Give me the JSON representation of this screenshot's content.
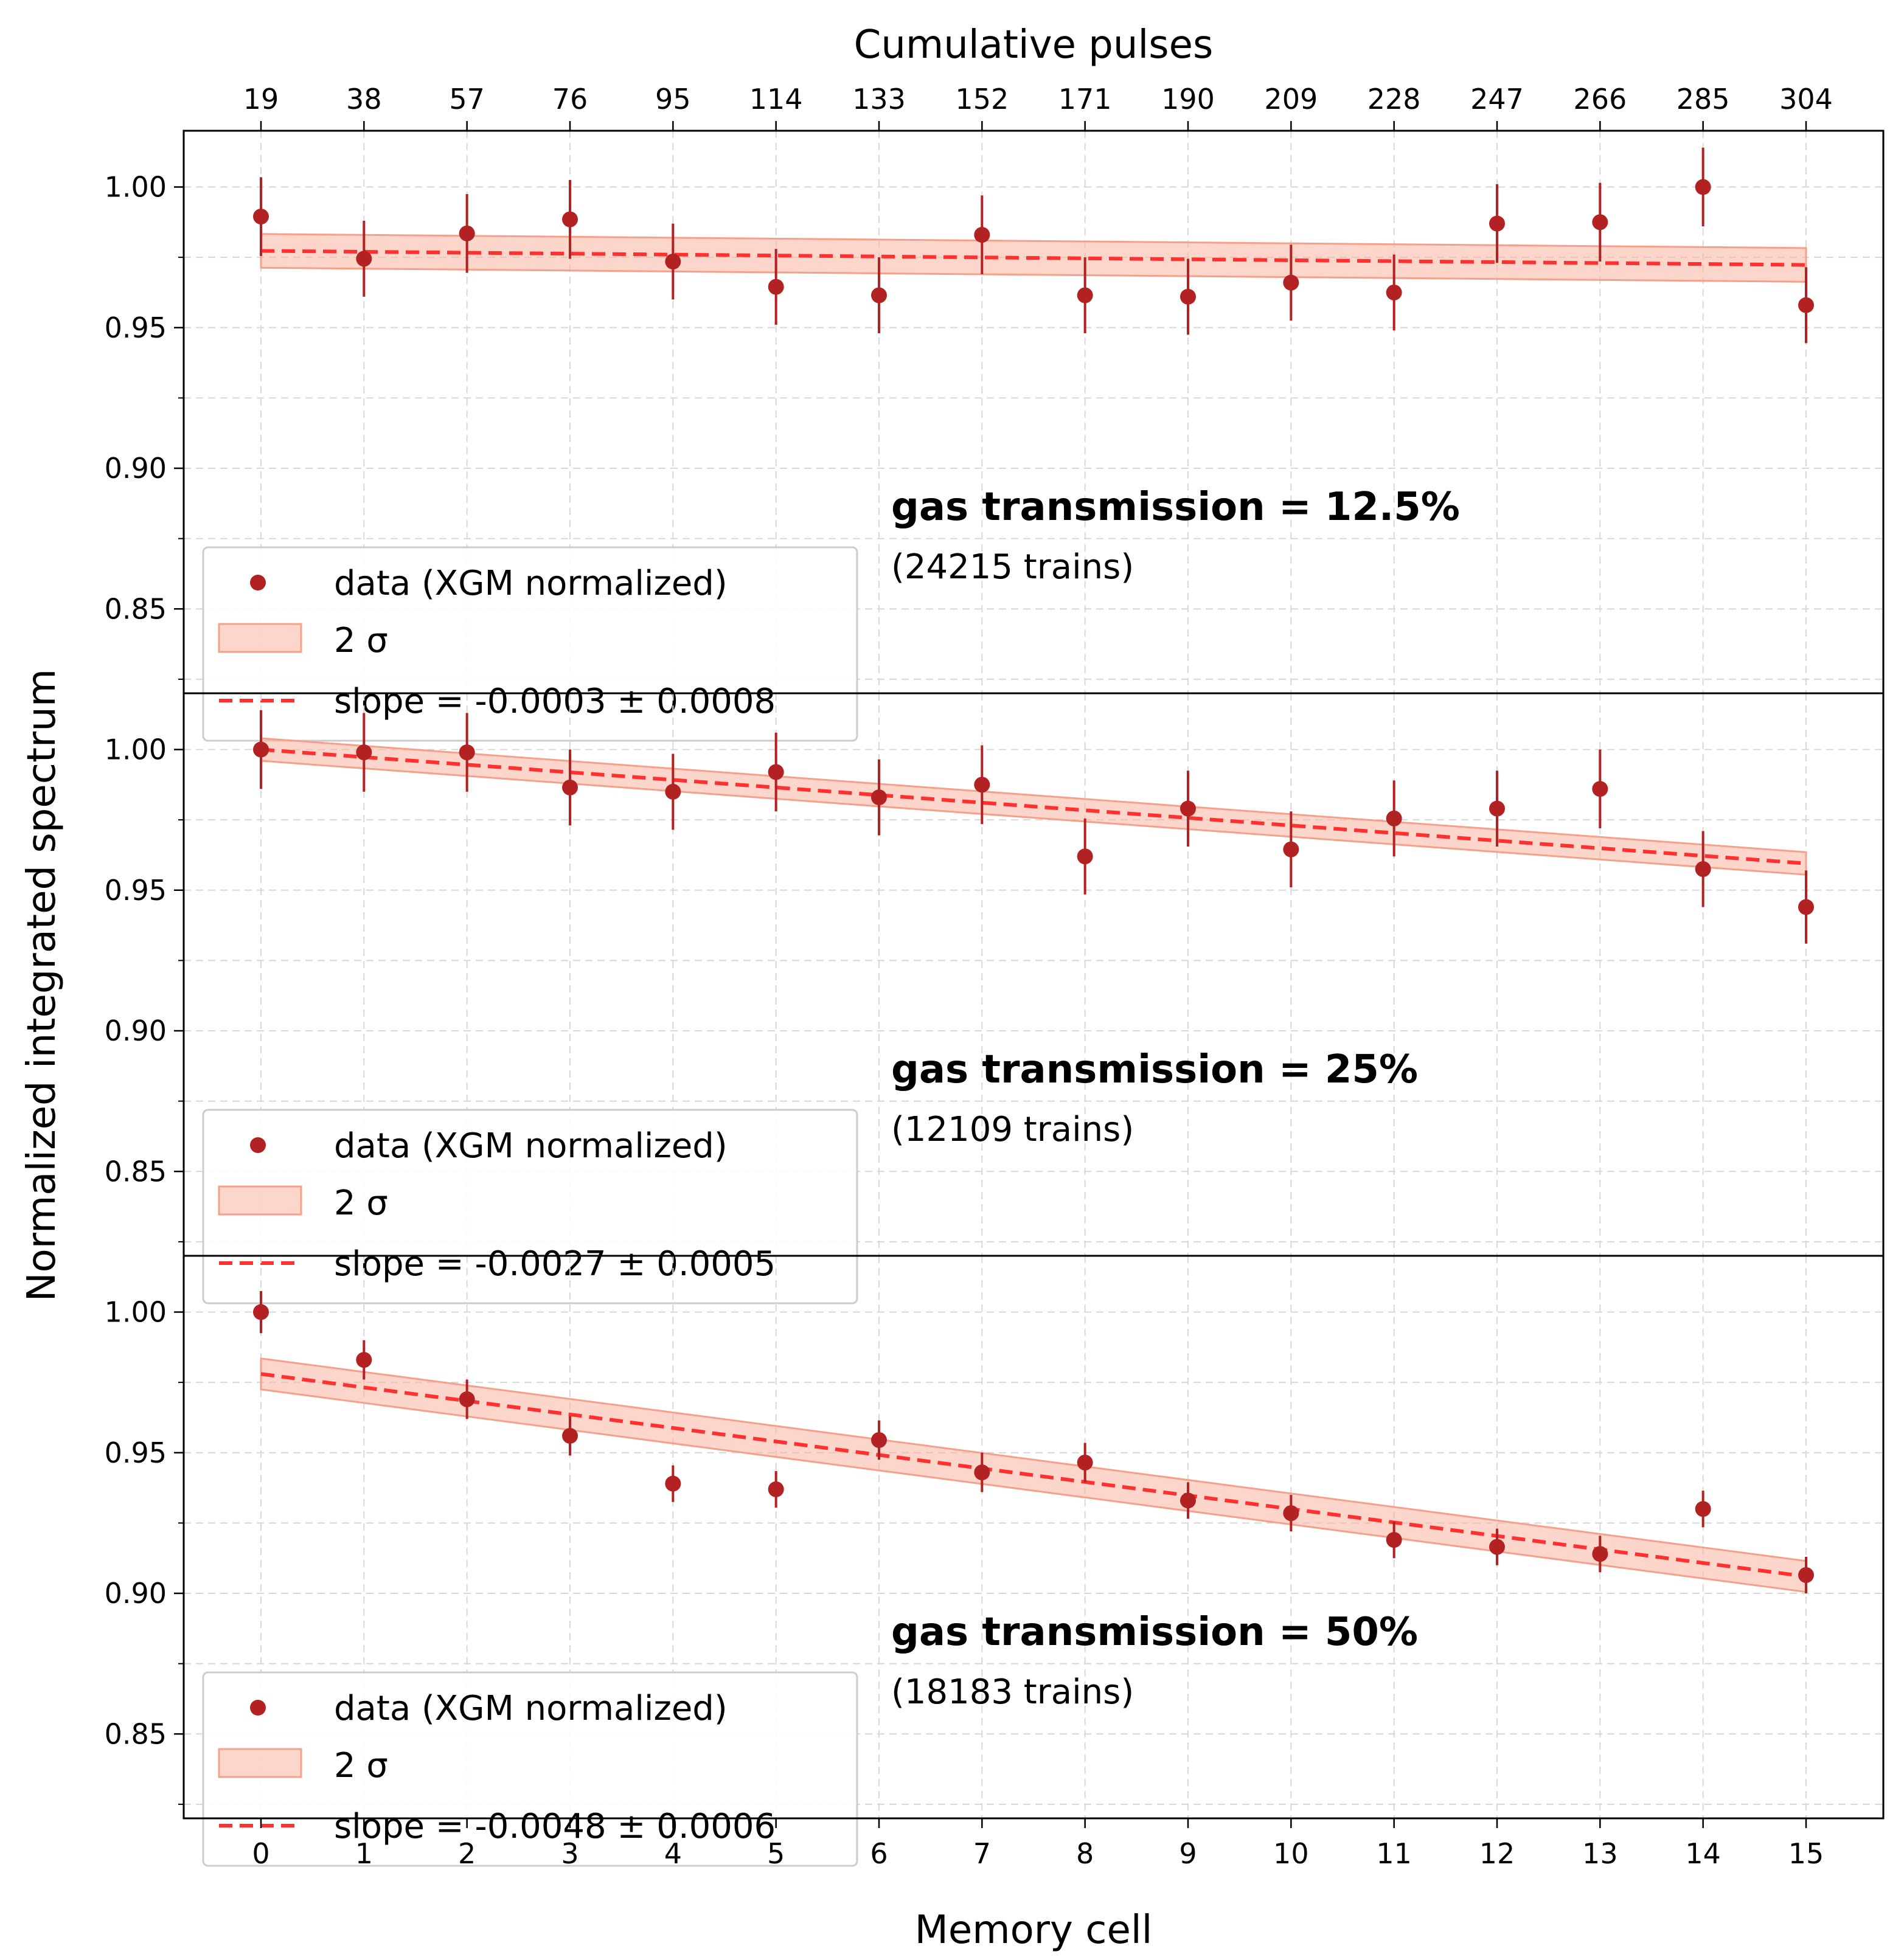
{
  "chart_data": {
    "type": "scatter",
    "xlabel": "Memory cell",
    "ylabel": "Normalized integrated spectrum",
    "top_xlabel": "Cumulative pulses",
    "x": [
      0,
      1,
      2,
      3,
      4,
      5,
      6,
      7,
      8,
      9,
      10,
      11,
      12,
      13,
      14,
      15
    ],
    "x_tick_labels": [
      "0",
      "1",
      "2",
      "3",
      "4",
      "5",
      "6",
      "7",
      "8",
      "9",
      "10",
      "11",
      "12",
      "13",
      "14",
      "15"
    ],
    "top_tick_labels": [
      "19",
      "38",
      "57",
      "76",
      "95",
      "114",
      "133",
      "152",
      "171",
      "190",
      "209",
      "228",
      "247",
      "266",
      "285",
      "304"
    ],
    "xlim": [
      -0.75,
      15.75
    ],
    "ylim": [
      0.82,
      1.02
    ],
    "y_ticks": [
      0.85,
      0.9,
      0.95,
      1.0
    ],
    "y_tick_labels": [
      "0.85",
      "0.90",
      "0.95",
      "1.00"
    ],
    "grid": true,
    "colors": {
      "data": "#b22222",
      "fit": "#ff3030",
      "band": "#f9b4a0",
      "band_edge": "#f4a08a"
    },
    "legend_labels": {
      "data": "data (XGM normalized)",
      "band": "2 σ"
    },
    "panels": [
      {
        "annotation": "gas transmission = 12.5%",
        "trains": "(24215 trains)",
        "slope_label": "slope = -0.0003 ± 0.0008",
        "y": [
          0.9895,
          0.9745,
          0.9835,
          0.9885,
          0.9735,
          0.9645,
          0.9615,
          0.983,
          0.9615,
          0.961,
          0.966,
          0.9625,
          0.987,
          0.9875,
          1.0,
          0.958
        ],
        "err": [
          0.014,
          0.0135,
          0.014,
          0.014,
          0.0135,
          0.0135,
          0.0135,
          0.014,
          0.0135,
          0.0135,
          0.0135,
          0.0135,
          0.014,
          0.014,
          0.014,
          0.0135
        ],
        "fit": [
          0.9773,
          0.9723
        ],
        "band_halfwidth": 0.006
      },
      {
        "annotation": "gas transmission = 25%",
        "trains": "(12109 trains)",
        "slope_label": "slope = -0.0027 ± 0.0005",
        "y": [
          1.0,
          0.999,
          0.999,
          0.9865,
          0.985,
          0.992,
          0.983,
          0.9875,
          0.962,
          0.979,
          0.9645,
          0.9755,
          0.979,
          0.986,
          0.9575,
          0.944
        ],
        "err": [
          0.014,
          0.014,
          0.014,
          0.0135,
          0.0135,
          0.014,
          0.0135,
          0.014,
          0.0135,
          0.0135,
          0.0135,
          0.0135,
          0.0135,
          0.014,
          0.0135,
          0.013
        ],
        "fit": [
          1.0,
          0.9595
        ],
        "band_halfwidth": 0.004
      },
      {
        "annotation": "gas transmission = 50%",
        "trains": "(18183 trains)",
        "slope_label": "slope = -0.0048 ± 0.0006",
        "y": [
          1.0,
          0.983,
          0.969,
          0.956,
          0.939,
          0.937,
          0.9545,
          0.943,
          0.9465,
          0.933,
          0.9285,
          0.919,
          0.9165,
          0.914,
          0.93,
          0.9065
        ],
        "err": [
          0.0075,
          0.007,
          0.007,
          0.007,
          0.0065,
          0.0065,
          0.007,
          0.007,
          0.007,
          0.0065,
          0.0065,
          0.0065,
          0.0065,
          0.0065,
          0.0065,
          0.0065
        ],
        "fit": [
          0.978,
          0.906
        ],
        "band_halfwidth": 0.0055
      }
    ]
  }
}
